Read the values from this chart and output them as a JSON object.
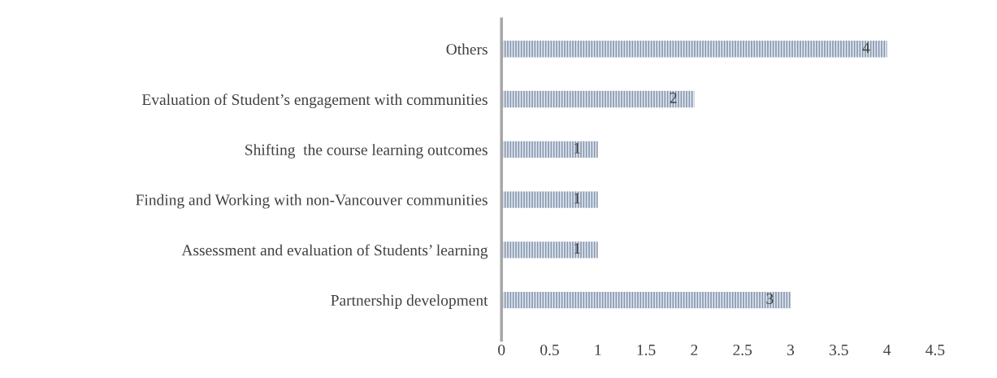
{
  "chart_data": {
    "type": "bar",
    "orientation": "horizontal",
    "categories": [
      "Others",
      "Evaluation of Student’s engagement with communities",
      "Shifting  the course learning outcomes",
      "Finding and Working with non-Vancouver communities",
      "Assessment and evaluation of Students’ learning",
      "Partnership development"
    ],
    "values": [
      4,
      2,
      1,
      1,
      1,
      3
    ],
    "color": "#8497b0",
    "xlim": [
      0,
      4.5
    ],
    "xticks": [
      0,
      0.5,
      1,
      1.5,
      2,
      2.5,
      3,
      3.5,
      4,
      4.5
    ],
    "data_labels": true,
    "grid": false
  }
}
